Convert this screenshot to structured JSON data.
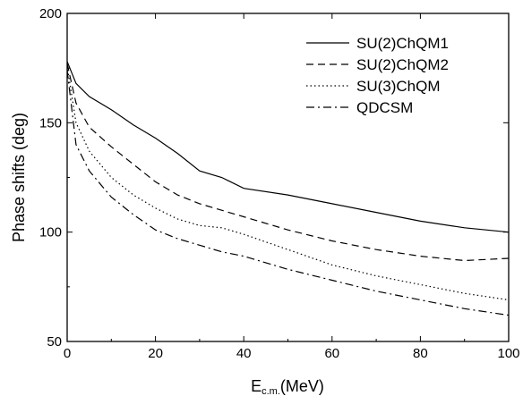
{
  "chart_data": {
    "type": "line",
    "xlabel": {
      "main": "E",
      "sub": "c.m.",
      "unit": "(MeV)"
    },
    "ylabel": "Phase shifts (deg)",
    "xlim": [
      0,
      100
    ],
    "ylim": [
      50,
      200
    ],
    "xticks": [
      0,
      20,
      40,
      60,
      80,
      100
    ],
    "yticks": [
      50,
      100,
      150,
      200
    ],
    "grid": false,
    "legend_position": "top-right",
    "series": [
      {
        "name": "SU(2)ChQM1",
        "style": "solid",
        "x": [
          0,
          2,
          5,
          10,
          15,
          20,
          25,
          30,
          35,
          40,
          50,
          60,
          70,
          80,
          90,
          100
        ],
        "y": [
          178,
          168,
          162,
          156,
          149,
          143,
          136,
          128,
          125,
          120,
          117,
          113,
          109,
          105,
          102,
          100
        ]
      },
      {
        "name": "SU(2)ChQM2",
        "style": "dashed",
        "x": [
          0,
          2,
          5,
          10,
          15,
          20,
          25,
          30,
          35,
          40,
          50,
          60,
          70,
          80,
          90,
          100
        ],
        "y": [
          177,
          159,
          148,
          139,
          131,
          123,
          117,
          113,
          110,
          107,
          101,
          96,
          92,
          89,
          87,
          88
        ]
      },
      {
        "name": "SU(3)ChQM",
        "style": "dotted",
        "x": [
          0,
          2,
          5,
          10,
          15,
          20,
          25,
          30,
          35,
          40,
          50,
          60,
          70,
          80,
          90,
          100
        ],
        "y": [
          176,
          150,
          137,
          125,
          117,
          111,
          106,
          103,
          102,
          99,
          92,
          85,
          80,
          76,
          72,
          69
        ]
      },
      {
        "name": "QDCSM",
        "style": "dashdot",
        "x": [
          0,
          2,
          5,
          10,
          15,
          20,
          25,
          30,
          35,
          40,
          50,
          60,
          70,
          80,
          90,
          100
        ],
        "y": [
          174,
          140,
          128,
          116,
          108,
          101,
          97,
          94,
          91,
          89,
          83,
          78,
          73,
          69,
          65,
          62
        ]
      }
    ]
  }
}
